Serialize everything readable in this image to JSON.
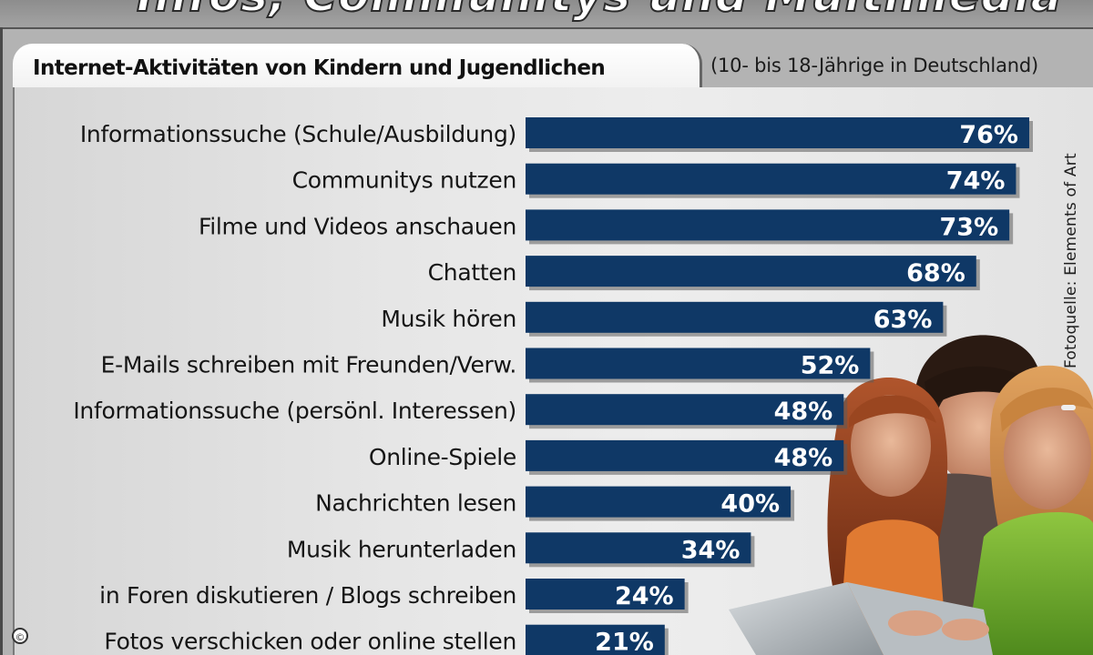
{
  "headline": "Infos, Communitys und Multimedia",
  "credit": "Fotoquelle: Elements of Art",
  "copyright_symbol": "©",
  "colors": {
    "bar": "#0f3866",
    "background": "#b3b3b3",
    "panel": "#e6e6e6"
  },
  "chart_data": {
    "type": "bar",
    "orientation": "horizontal",
    "title": "Internet-Aktivitäten von Kindern und Jugendlichen",
    "subtitle": "(10- bis 18-Jährige in Deutschland)",
    "unit": "%",
    "xlim": [
      0,
      76
    ],
    "categories": [
      "Informationssuche (Schule/Ausbildung)",
      "Communitys nutzen",
      "Filme und Videos anschauen",
      "Chatten",
      "Musik hören",
      "E-Mails schreiben mit Freunden/Verw.",
      "Informationssuche (persönl. Interessen)",
      "Online-Spiele",
      "Nachrichten lesen",
      "Musik herunterladen",
      "in Foren diskutieren / Blogs schreiben",
      "Fotos verschicken oder online stellen"
    ],
    "values": [
      76,
      74,
      73,
      68,
      63,
      52,
      48,
      48,
      40,
      34,
      24,
      21
    ],
    "value_labels": [
      "76%",
      "74%",
      "73%",
      "68%",
      "63%",
      "52%",
      "48%",
      "48%",
      "40%",
      "34%",
      "24%",
      "21%"
    ]
  }
}
